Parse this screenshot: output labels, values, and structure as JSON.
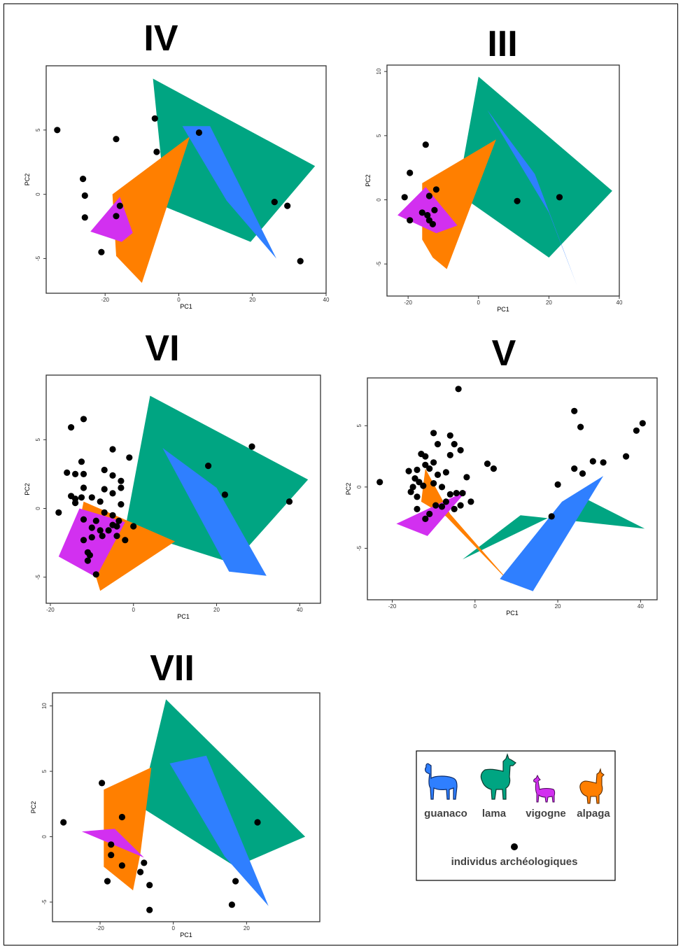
{
  "colors": {
    "guanaco": "#2F7FFF",
    "lama": "#00A582",
    "vigogne": "#D230F0",
    "alpaga": "#FF7F00",
    "points": "#000000"
  },
  "legend": {
    "items": [
      {
        "key": "guanaco",
        "label": "guanaco",
        "icon": "llama-silhouette-icon"
      },
      {
        "key": "lama",
        "label": "lama",
        "icon": "llama-silhouette-icon"
      },
      {
        "key": "vigogne",
        "label": "vigogne",
        "icon": "llama-silhouette-icon"
      },
      {
        "key": "alpaga",
        "label": "alpaga",
        "icon": "llama-silhouette-icon"
      }
    ],
    "points_label": "individus archéologiques"
  },
  "chart_data": [
    {
      "title": "IV",
      "type": "scatter",
      "xlabel": "PC1",
      "ylabel": "PC2",
      "xlim": [
        -36,
        40
      ],
      "ylim": [
        -7.7,
        10
      ],
      "xticks": [
        -20,
        0,
        20,
        40
      ],
      "yticks": [
        -5,
        0,
        5
      ],
      "hulls": {
        "lama": [
          [
            -7,
            9
          ],
          [
            37,
            2.2
          ],
          [
            19.5,
            -3.7
          ],
          [
            -3.5,
            -1
          ]
        ],
        "alpaga": [
          [
            3,
            4.5
          ],
          [
            -10,
            -6.9
          ],
          [
            -17,
            -4.8
          ],
          [
            -18,
            0
          ]
        ],
        "vigogne": [
          [
            -16,
            -0.2
          ],
          [
            -12.5,
            -3
          ],
          [
            -15.5,
            -3.7
          ],
          [
            -24,
            -2.9
          ]
        ],
        "guanaco": [
          [
            1,
            5.3
          ],
          [
            8.5,
            5.3
          ],
          [
            26.5,
            -5
          ],
          [
            13,
            -0.5
          ]
        ]
      },
      "points": [
        [
          -33,
          5
        ],
        [
          -17,
          4.3
        ],
        [
          -6.5,
          5.9
        ],
        [
          -6,
          3.3
        ],
        [
          5.5,
          4.8
        ],
        [
          -26,
          1.2
        ],
        [
          -25.5,
          -0.1
        ],
        [
          -25.5,
          -1.8
        ],
        [
          -16,
          -0.9
        ],
        [
          -17,
          -1.7
        ],
        [
          -21,
          -4.5
        ],
        [
          26,
          -0.6
        ],
        [
          29.5,
          -0.9
        ],
        [
          33,
          -5.2
        ]
      ]
    },
    {
      "title": "III",
      "type": "scatter",
      "xlabel": "PC1",
      "ylabel": "PC2",
      "xlim": [
        -26,
        40
      ],
      "ylim": [
        -7.5,
        10.5
      ],
      "xticks": [
        -20,
        0,
        20,
        40
      ],
      "yticks": [
        -5,
        0,
        5,
        10
      ],
      "hulls": {
        "lama": [
          [
            0,
            9.6
          ],
          [
            38,
            0.7
          ],
          [
            20,
            -4.5
          ],
          [
            -6,
            0.5
          ]
        ],
        "alpaga": [
          [
            5,
            4.7
          ],
          [
            -9,
            -5.4
          ],
          [
            -13,
            -4.5
          ],
          [
            -16,
            -3.1
          ],
          [
            -16,
            1.3
          ]
        ],
        "vigogne": [
          [
            -15,
            1
          ],
          [
            -6,
            -2
          ],
          [
            -12,
            -2.6
          ],
          [
            -23,
            -1.2
          ]
        ],
        "guanaco": [
          [
            2.5,
            7
          ],
          [
            16,
            2
          ],
          [
            28,
            -6.7
          ],
          [
            20,
            -1
          ]
        ]
      },
      "points": [
        [
          -15,
          4.3
        ],
        [
          -19.5,
          2.1
        ],
        [
          -21,
          0.2
        ],
        [
          -12,
          0.8
        ],
        [
          -14,
          0.3
        ],
        [
          -16,
          -1
        ],
        [
          -14.5,
          -1.2
        ],
        [
          -12.5,
          -0.8
        ],
        [
          -19.5,
          -1.6
        ],
        [
          -14,
          -1.6
        ],
        [
          -13,
          -1.9
        ],
        [
          11,
          -0.1
        ],
        [
          23,
          0.2
        ]
      ]
    },
    {
      "title": "VI",
      "type": "scatter",
      "xlabel": "PC1",
      "ylabel": "PC2",
      "xlim": [
        -21,
        45
      ],
      "ylim": [
        -6.9,
        9.7
      ],
      "xticks": [
        -20,
        0,
        20,
        40
      ],
      "yticks": [
        -5,
        0,
        5
      ],
      "hulls": {
        "lama": [
          [
            4,
            8.2
          ],
          [
            42,
            2.1
          ],
          [
            24,
            -4
          ],
          [
            -2,
            -1.5
          ]
        ],
        "alpaga": [
          [
            -12,
            0.5
          ],
          [
            10,
            -2.4
          ],
          [
            -8,
            -6
          ],
          [
            -13,
            -1
          ]
        ],
        "vigogne": [
          [
            -13,
            0
          ],
          [
            -2,
            -1
          ],
          [
            -9,
            -5
          ],
          [
            -18,
            -3.5
          ]
        ],
        "guanaco": [
          [
            7,
            4.4
          ],
          [
            20,
            1.5
          ],
          [
            32,
            -4.9
          ],
          [
            23,
            -4.6
          ]
        ]
      },
      "points": [
        [
          -12,
          6.5
        ],
        [
          -15,
          5.9
        ],
        [
          -5,
          4.3
        ],
        [
          -1,
          3.7
        ],
        [
          -12.5,
          3.4
        ],
        [
          -16,
          2.6
        ],
        [
          -14,
          2.5
        ],
        [
          -12,
          2.5
        ],
        [
          -7,
          2.8
        ],
        [
          -5,
          2.4
        ],
        [
          -3,
          2
        ],
        [
          -12,
          1.5
        ],
        [
          -7,
          1.4
        ],
        [
          -5,
          1.1
        ],
        [
          -3,
          1.5
        ],
        [
          -15,
          0.9
        ],
        [
          -14,
          0.7
        ],
        [
          -12.5,
          0.8
        ],
        [
          -10,
          0.8
        ],
        [
          -8,
          0.5
        ],
        [
          -18,
          -0.3
        ],
        [
          -14,
          0.4
        ],
        [
          -7,
          -0.3
        ],
        [
          -5,
          -0.5
        ],
        [
          -3,
          0.3
        ],
        [
          -3.5,
          -0.9
        ],
        [
          -12,
          -0.8
        ],
        [
          -9,
          -0.9
        ],
        [
          -10,
          -1.4
        ],
        [
          -8,
          -1.6
        ],
        [
          -6,
          -1.6
        ],
        [
          -5,
          -1.2
        ],
        [
          -4,
          -1.3
        ],
        [
          -7.5,
          -2
        ],
        [
          -12,
          -2.3
        ],
        [
          -10,
          -2.1
        ],
        [
          -4,
          -2
        ],
        [
          -2,
          -2.3
        ],
        [
          -11,
          -3.2
        ],
        [
          -10.5,
          -3.4
        ],
        [
          -11,
          -3.8
        ],
        [
          -9,
          -4.8
        ],
        [
          0,
          -1.3
        ],
        [
          18,
          3.1
        ],
        [
          22,
          1
        ],
        [
          28.5,
          4.5
        ],
        [
          37.5,
          0.5
        ]
      ]
    },
    {
      "title": "V",
      "type": "scatter",
      "xlabel": "PC1",
      "ylabel": "PC2",
      "xlim": [
        -26,
        44
      ],
      "ylim": [
        -9.2,
        8.9
      ],
      "xticks": [
        -20,
        0,
        20,
        40
      ],
      "yticks": [
        -5,
        0,
        5
      ],
      "hulls": {
        "lama": [
          [
            11,
            -2.3
          ],
          [
            41,
            -3.4
          ],
          [
            27,
            -1
          ],
          [
            -3,
            -5.9
          ]
        ],
        "alpaga": [
          [
            -12,
            1.5
          ],
          [
            -13,
            -1.2
          ],
          [
            -7,
            -2.4
          ],
          [
            9,
            -8
          ],
          [
            -6,
            -2.2
          ]
        ],
        "vigogne": [
          [
            -2,
            -0.3
          ],
          [
            -11.5,
            -4
          ],
          [
            -19,
            -3
          ]
        ],
        "guanaco": [
          [
            31,
            0.9
          ],
          [
            14,
            -8.5
          ],
          [
            6,
            -7.5
          ],
          [
            21,
            -1.2
          ]
        ]
      },
      "points": [
        [
          -4,
          8
        ],
        [
          24,
          6.2
        ],
        [
          25.5,
          4.9
        ],
        [
          40.5,
          5.2
        ],
        [
          39,
          4.6
        ],
        [
          -10,
          4.4
        ],
        [
          -6,
          4.2
        ],
        [
          -13,
          2.7
        ],
        [
          -12,
          2.5
        ],
        [
          -9,
          3.5
        ],
        [
          -5,
          3.5
        ],
        [
          -3.5,
          3
        ],
        [
          -6,
          2.6
        ],
        [
          -12,
          1.8
        ],
        [
          -10,
          2
        ],
        [
          -14,
          1.4
        ],
        [
          -16,
          1.3
        ],
        [
          -14.5,
          0.7
        ],
        [
          -13.5,
          0.4
        ],
        [
          -11,
          1.5
        ],
        [
          -9,
          1
        ],
        [
          -7,
          1.2
        ],
        [
          -15,
          0
        ],
        [
          -12.5,
          0.1
        ],
        [
          -10,
          0.3
        ],
        [
          -8,
          0
        ],
        [
          -6,
          -0.6
        ],
        [
          -15.5,
          -0.4
        ],
        [
          -14,
          -0.8
        ],
        [
          -9.5,
          -1.5
        ],
        [
          -7,
          -1.2
        ],
        [
          -14,
          -1.8
        ],
        [
          -11,
          -2.2
        ],
        [
          -12,
          -2.6
        ],
        [
          -8,
          -1.6
        ],
        [
          -3.5,
          -1.5
        ],
        [
          -5,
          -1.8
        ],
        [
          -1,
          -1.2
        ],
        [
          -3,
          -0.5
        ],
        [
          -23,
          0.4
        ],
        [
          -2,
          0.8
        ],
        [
          3,
          1.9
        ],
        [
          4.5,
          1.5
        ],
        [
          -4.5,
          -0.5
        ],
        [
          18.5,
          -2.4
        ],
        [
          20,
          0.2
        ],
        [
          24,
          1.5
        ],
        [
          26,
          1.1
        ],
        [
          28.5,
          2.1
        ],
        [
          31,
          2
        ],
        [
          36.5,
          2.5
        ]
      ]
    },
    {
      "title": "VII",
      "type": "scatter",
      "xlabel": "PC1",
      "ylabel": "PC2",
      "xlim": [
        -33,
        40
      ],
      "ylim": [
        -6.5,
        11
      ],
      "xticks": [
        -20,
        0,
        20
      ],
      "yticks": [
        -5,
        0,
        5,
        10
      ],
      "hulls": {
        "lama": [
          [
            -2,
            10.5
          ],
          [
            36,
            0
          ],
          [
            17,
            -2.3
          ],
          [
            -9,
            2.3
          ]
        ],
        "alpaga": [
          [
            -6,
            5.3
          ],
          [
            -9,
            -1.3
          ],
          [
            -11,
            -4.1
          ],
          [
            -19,
            -2.3
          ],
          [
            -19,
            3.6
          ]
        ],
        "vigogne": [
          [
            -16,
            0.6
          ],
          [
            -8,
            -1.6
          ],
          [
            -25,
            0.4
          ]
        ],
        "guanaco": [
          [
            -1,
            5.6
          ],
          [
            9,
            6.2
          ],
          [
            26,
            -5.3
          ],
          [
            14,
            -1.5
          ]
        ]
      },
      "points": [
        [
          -30,
          1.1
        ],
        [
          -19.5,
          4.1
        ],
        [
          -14,
          1.5
        ],
        [
          -17,
          -0.6
        ],
        [
          -17,
          -1.4
        ],
        [
          -14,
          -2.2
        ],
        [
          -8,
          -2
        ],
        [
          -9,
          -2.7
        ],
        [
          -18,
          -3.4
        ],
        [
          -6.5,
          -3.7
        ],
        [
          -6.5,
          -5.6
        ],
        [
          23,
          1.1
        ],
        [
          17,
          -3.4
        ],
        [
          16,
          -5.2
        ]
      ]
    }
  ]
}
